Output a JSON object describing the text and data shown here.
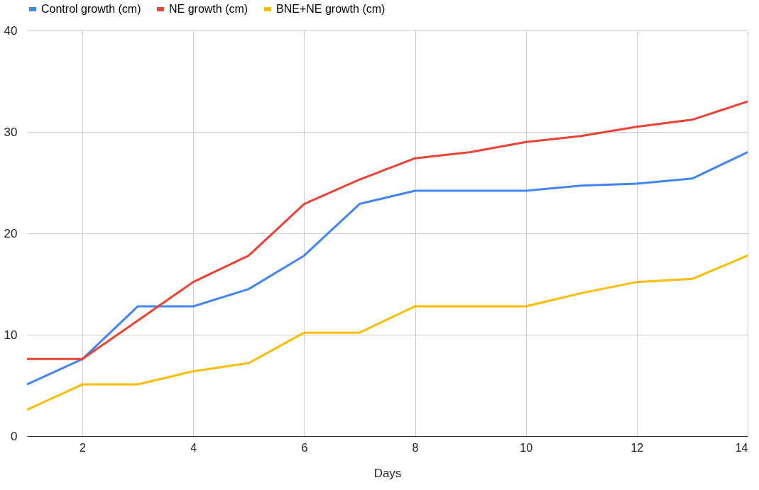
{
  "chart_data": {
    "type": "line",
    "xlabel": "Days",
    "x": [
      1,
      2,
      3,
      4,
      5,
      6,
      7,
      8,
      9,
      10,
      11,
      12,
      13,
      14
    ],
    "xlim": [
      1,
      14
    ],
    "xticks": [
      2,
      4,
      6,
      8,
      10,
      12,
      14
    ],
    "ylim": [
      0,
      40
    ],
    "yticks": [
      0,
      10,
      20,
      30,
      40
    ],
    "grid": true,
    "legend": "top",
    "marker": "none",
    "line_style": "solid",
    "series": [
      {
        "name": "Control growth (cm)",
        "color": "#4285f4",
        "values": [
          5.1,
          7.6,
          12.8,
          12.8,
          14.5,
          17.8,
          22.9,
          24.2,
          24.2,
          24.2,
          24.7,
          24.9,
          25.4,
          28
        ]
      },
      {
        "name": "NE growth (cm)",
        "color": "#ea4335",
        "values": [
          7.6,
          7.6,
          11.4,
          15.2,
          17.8,
          22.9,
          25.3,
          27.4,
          28,
          29,
          29.6,
          30.5,
          31.2,
          33
        ]
      },
      {
        "name": "BNE+NE growth (cm)",
        "color": "#fbbc04",
        "values": [
          2.6,
          5.1,
          5.1,
          6.4,
          7.2,
          10.2,
          10.2,
          12.8,
          12.8,
          12.8,
          14.1,
          15.2,
          15.5,
          17.8
        ]
      }
    ]
  }
}
